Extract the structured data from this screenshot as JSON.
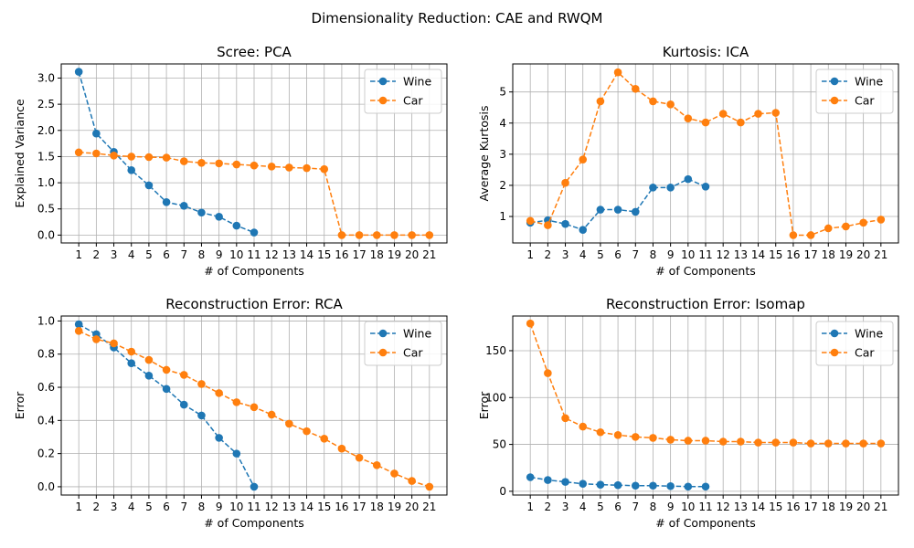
{
  "figure": {
    "suptitle": "Dimensionality Reduction: CAE and RWQM"
  },
  "legend_labels": [
    "Wine",
    "Car"
  ],
  "colors": {
    "Wine": "#1f77b4",
    "Car": "#ff7f0e"
  },
  "chart_data": [
    {
      "type": "line",
      "title": "Scree: PCA",
      "xlabel": "# of Components",
      "ylabel": "Explained Variance",
      "x": [
        1,
        2,
        3,
        4,
        5,
        6,
        7,
        8,
        9,
        10,
        11,
        12,
        13,
        14,
        15,
        16,
        17,
        18,
        19,
        20,
        21
      ],
      "ylim": [
        -0.15,
        3.27
      ],
      "yticks": [
        0.0,
        0.5,
        1.0,
        1.5,
        2.0,
        2.5,
        3.0
      ],
      "ytick_labels": [
        "0.0",
        "0.5",
        "1.0",
        "1.5",
        "2.0",
        "2.5",
        "3.0"
      ],
      "grid": true,
      "legend": "upper right",
      "series": [
        {
          "name": "Wine",
          "x": [
            1,
            2,
            3,
            4,
            5,
            6,
            7,
            8,
            9,
            10,
            11
          ],
          "values": [
            3.12,
            1.94,
            1.59,
            1.24,
            0.95,
            0.63,
            0.56,
            0.43,
            0.35,
            0.18,
            0.05
          ]
        },
        {
          "name": "Car",
          "x": [
            1,
            2,
            3,
            4,
            5,
            6,
            7,
            8,
            9,
            10,
            11,
            12,
            13,
            14,
            15,
            16,
            17,
            18,
            19,
            20,
            21
          ],
          "values": [
            1.58,
            1.56,
            1.52,
            1.5,
            1.49,
            1.48,
            1.41,
            1.38,
            1.37,
            1.35,
            1.33,
            1.31,
            1.29,
            1.28,
            1.26,
            0.0,
            0.0,
            0.0,
            0.0,
            0.0,
            0.0
          ]
        }
      ]
    },
    {
      "type": "line",
      "title": "Kurtosis: ICA",
      "xlabel": "# of Components",
      "ylabel": "Average Kurtosis",
      "x": [
        1,
        2,
        3,
        4,
        5,
        6,
        7,
        8,
        9,
        10,
        11,
        12,
        13,
        14,
        15,
        16,
        17,
        18,
        19,
        20,
        21
      ],
      "ylim": [
        0.15,
        5.9
      ],
      "yticks": [
        1,
        2,
        3,
        4,
        5
      ],
      "ytick_labels": [
        "1",
        "2",
        "3",
        "4",
        "5"
      ],
      "grid": true,
      "legend": "upper right",
      "series": [
        {
          "name": "Wine",
          "x": [
            1,
            2,
            3,
            4,
            5,
            6,
            7,
            8,
            9,
            10,
            11
          ],
          "values": [
            0.8,
            0.88,
            0.76,
            0.57,
            1.22,
            1.22,
            1.15,
            1.93,
            1.93,
            2.2,
            1.96
          ]
        },
        {
          "name": "Car",
          "x": [
            1,
            2,
            3,
            4,
            5,
            6,
            7,
            8,
            9,
            10,
            11,
            12,
            13,
            14,
            15,
            16,
            17,
            18,
            19,
            20,
            21
          ],
          "values": [
            0.86,
            0.72,
            2.08,
            2.83,
            4.7,
            5.63,
            5.1,
            4.7,
            4.6,
            4.15,
            4.02,
            4.3,
            4.02,
            4.3,
            4.33,
            0.4,
            0.4,
            0.62,
            0.68,
            0.8,
            0.9
          ]
        }
      ]
    },
    {
      "type": "line",
      "title": "Reconstruction Error: RCA",
      "xlabel": "# of Components",
      "ylabel": "Error",
      "x": [
        1,
        2,
        3,
        4,
        5,
        6,
        7,
        8,
        9,
        10,
        11,
        12,
        13,
        14,
        15,
        16,
        17,
        18,
        19,
        20,
        21
      ],
      "ylim": [
        -0.05,
        1.03
      ],
      "yticks": [
        0.0,
        0.2,
        0.4,
        0.6,
        0.8,
        1.0
      ],
      "ytick_labels": [
        "0.0",
        "0.2",
        "0.4",
        "0.6",
        "0.8",
        "1.0"
      ],
      "grid": true,
      "legend": "upper right",
      "series": [
        {
          "name": "Wine",
          "x": [
            1,
            2,
            3,
            4,
            5,
            6,
            7,
            8,
            9,
            10,
            11
          ],
          "values": [
            0.98,
            0.92,
            0.84,
            0.745,
            0.67,
            0.59,
            0.495,
            0.43,
            0.295,
            0.2,
            0.0
          ]
        },
        {
          "name": "Car",
          "x": [
            1,
            2,
            3,
            4,
            5,
            6,
            7,
            8,
            9,
            10,
            11,
            12,
            13,
            14,
            15,
            16,
            17,
            18,
            19,
            20,
            21
          ],
          "values": [
            0.94,
            0.89,
            0.865,
            0.815,
            0.765,
            0.705,
            0.675,
            0.62,
            0.565,
            0.51,
            0.48,
            0.435,
            0.38,
            0.335,
            0.29,
            0.23,
            0.175,
            0.13,
            0.08,
            0.035,
            0.0
          ]
        }
      ]
    },
    {
      "type": "line",
      "title": "Reconstruction Error: Isomap",
      "xlabel": "# of Components",
      "ylabel": "Error",
      "x": [
        1,
        2,
        3,
        4,
        5,
        6,
        7,
        8,
        9,
        10,
        11,
        12,
        13,
        14,
        15,
        16,
        17,
        18,
        19,
        20,
        21
      ],
      "ylim": [
        -4,
        187
      ],
      "yticks": [
        0,
        50,
        100,
        150
      ],
      "ytick_labels": [
        "0",
        "50",
        "100",
        "150"
      ],
      "grid": true,
      "legend": "upper right",
      "series": [
        {
          "name": "Wine",
          "x": [
            1,
            2,
            3,
            4,
            5,
            6,
            7,
            8,
            9,
            10,
            11
          ],
          "values": [
            15,
            12,
            10,
            8,
            7,
            6.5,
            6,
            6,
            5.5,
            5,
            5
          ]
        },
        {
          "name": "Car",
          "x": [
            1,
            2,
            3,
            4,
            5,
            6,
            7,
            8,
            9,
            10,
            11,
            12,
            13,
            14,
            15,
            16,
            17,
            18,
            19,
            20,
            21
          ],
          "values": [
            179,
            126,
            78,
            69,
            63,
            60,
            58,
            57,
            55,
            54,
            54,
            53,
            53,
            52,
            52,
            52,
            51,
            51,
            51,
            51,
            51
          ]
        }
      ]
    }
  ]
}
